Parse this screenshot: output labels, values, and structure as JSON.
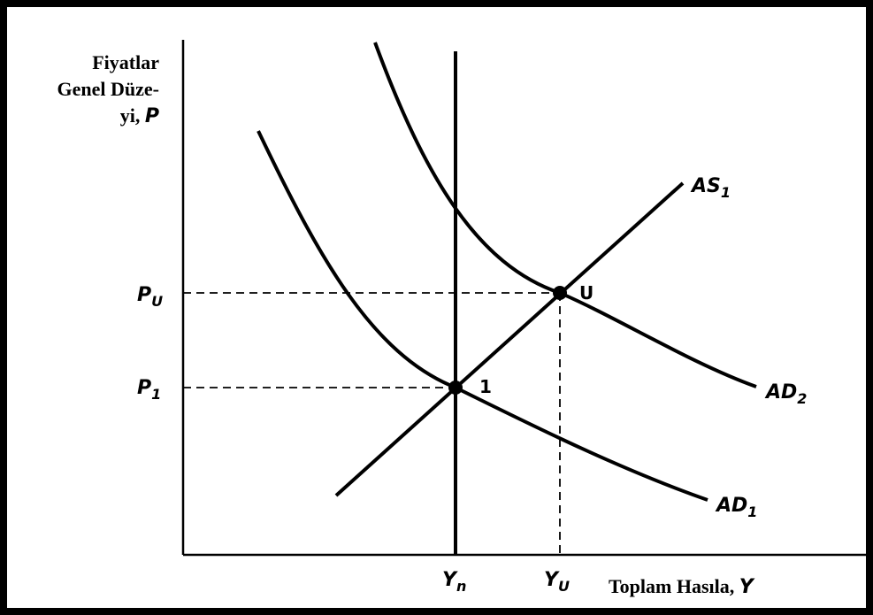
{
  "diagram": {
    "y_axis_label": {
      "lines": [
        "Fiyatlar",
        "Genel Düze-",
        "yi, "
      ],
      "variable": "P"
    },
    "x_axis_label": {
      "text": "Toplam Hasıla, ",
      "variable": "Y"
    },
    "y_ticks": [
      {
        "main": "P",
        "sub": "U"
      },
      {
        "main": "P",
        "sub": "1"
      }
    ],
    "x_ticks": [
      {
        "main": "Y",
        "sub": "n"
      },
      {
        "main": "Y",
        "sub": "U"
      }
    ],
    "curves": [
      {
        "main": "AS",
        "sub": "1"
      },
      {
        "main": "AD",
        "sub": "1"
      },
      {
        "main": "AD",
        "sub": "2"
      }
    ],
    "points": [
      "1",
      "U"
    ]
  }
}
